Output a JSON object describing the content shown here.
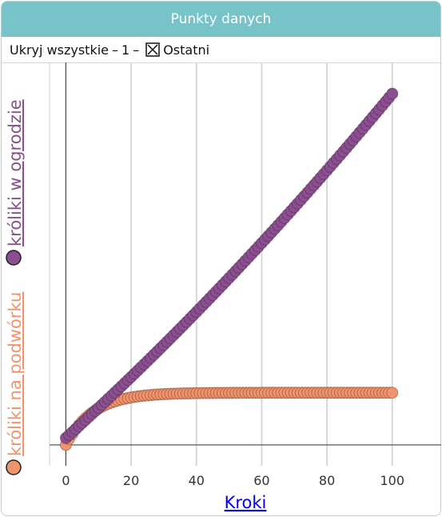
{
  "window": {
    "title": "Punkty danych"
  },
  "toolbar": {
    "hide_all": "Ukryj wszystkie",
    "dash1": "–",
    "count": "1",
    "dash2": "–",
    "last": "Ostatni",
    "last_checked": true
  },
  "chart_data": {
    "type": "scatter",
    "xlabel": "Kroki",
    "x_ticks": [
      "0",
      "20",
      "40",
      "60",
      "80",
      "100"
    ],
    "xlim": [
      -5,
      115
    ],
    "ylim": [
      -6,
      110
    ],
    "grid": true,
    "series": [
      {
        "name": "króliki na podwórku",
        "color": "#f0946e",
        "model": "logistic",
        "x_start": 0,
        "x_end": 100,
        "step": 1,
        "y0": 0,
        "asymptote": 15,
        "rate": 0.12
      },
      {
        "name": "króliki w ogrodzie",
        "color": "#8b4f8f",
        "model": "quadratic",
        "x_start": 0,
        "x_end": 100,
        "step": 1,
        "y0": 2,
        "a": 0.0014,
        "b": 0.85
      }
    ]
  },
  "legend": {
    "item1": "króliki na podwórku",
    "item2": "króliki w ogrodzie",
    "color1": "#f0946e",
    "color2": "#8b4f8f",
    "marker_stroke1": "#6b2e1a",
    "marker_stroke2": "#3f1f42"
  }
}
